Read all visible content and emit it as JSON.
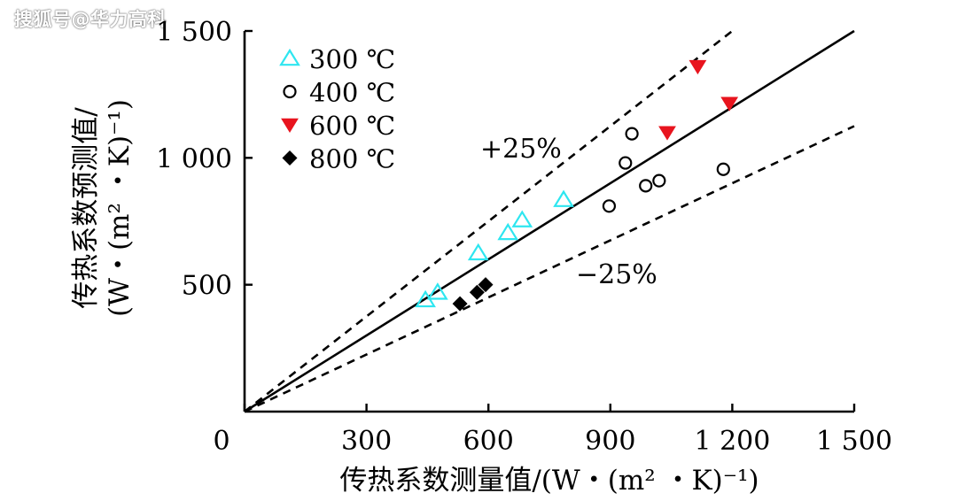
{
  "watermark": "搜狐号@华力高科",
  "colors": {
    "s300": "#2ee6f0",
    "s400": "#000000",
    "s600": "#e8141e",
    "s800": "#000000"
  },
  "chart_data": {
    "type": "scatter",
    "xlabel": "传热系数测量值/(W・(m² ・K)⁻¹)",
    "ylabel_line1": "传热系数预测值/",
    "ylabel_line2": "(W・(m² ・K)⁻¹)",
    "xlim": [
      0,
      1500
    ],
    "ylim": [
      0,
      1500
    ],
    "x_ticks": [
      0,
      300,
      600,
      900,
      1200,
      1500
    ],
    "x_tick_labels": [
      "0",
      "300",
      "600",
      "900",
      "1 200",
      "1 500"
    ],
    "y_ticks": [
      500,
      1000,
      1500
    ],
    "y_tick_labels": [
      "500",
      "1 000",
      "1 500"
    ],
    "legend_position": "top-left",
    "series": [
      {
        "name": "300 ℃",
        "marker": "triangle-open",
        "points": [
          [
            445,
            440
          ],
          [
            475,
            470
          ],
          [
            575,
            625
          ],
          [
            648,
            705
          ],
          [
            683,
            755
          ],
          [
            785,
            835
          ]
        ]
      },
      {
        "name": "400 ℃",
        "marker": "circle-open",
        "points": [
          [
            897,
            810
          ],
          [
            937,
            980
          ],
          [
            953,
            1095
          ],
          [
            987,
            890
          ],
          [
            1020,
            910
          ],
          [
            1178,
            955
          ]
        ]
      },
      {
        "name": "600 ℃",
        "marker": "triangle-down-filled",
        "points": [
          [
            1040,
            1100
          ],
          [
            1115,
            1360
          ],
          [
            1193,
            1215
          ]
        ]
      },
      {
        "name": "800 ℃",
        "marker": "diamond-filled",
        "points": [
          [
            530,
            425
          ],
          [
            572,
            470
          ],
          [
            593,
            500
          ]
        ]
      }
    ],
    "reference_lines": [
      {
        "label": "",
        "slope": 1.0
      },
      {
        "label": "+25%",
        "slope": 1.25
      },
      {
        "label": "−25%",
        "slope": 0.75
      }
    ]
  }
}
